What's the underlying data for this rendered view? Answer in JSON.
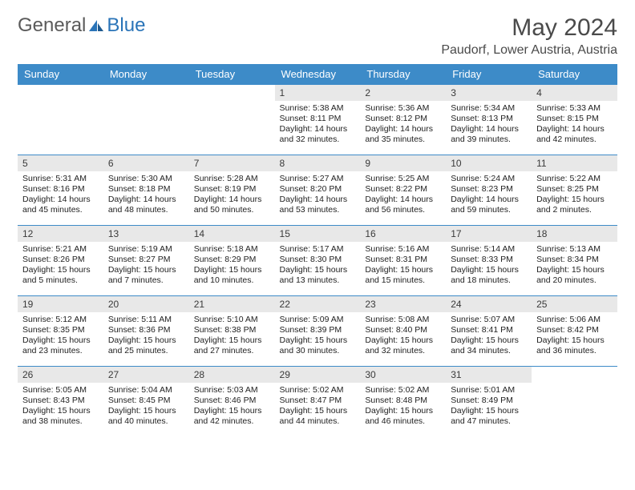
{
  "header": {
    "logo_general": "General",
    "logo_blue": "Blue",
    "month_title": "May 2024",
    "location": "Paudorf, Lower Austria, Austria"
  },
  "colors": {
    "header_bg": "#3d8bc8",
    "header_text": "#ffffff",
    "daynum_bg": "#e8e8e8",
    "border": "#3d8bc8",
    "logo_gray": "#5a5a5a",
    "logo_blue": "#2a74b8"
  },
  "calendar": {
    "day_headers": [
      "Sunday",
      "Monday",
      "Tuesday",
      "Wednesday",
      "Thursday",
      "Friday",
      "Saturday"
    ],
    "weeks": [
      [
        {
          "num": "",
          "sunrise": "",
          "sunset": "",
          "daylight": ""
        },
        {
          "num": "",
          "sunrise": "",
          "sunset": "",
          "daylight": ""
        },
        {
          "num": "",
          "sunrise": "",
          "sunset": "",
          "daylight": ""
        },
        {
          "num": "1",
          "sunrise": "Sunrise: 5:38 AM",
          "sunset": "Sunset: 8:11 PM",
          "daylight": "Daylight: 14 hours and 32 minutes."
        },
        {
          "num": "2",
          "sunrise": "Sunrise: 5:36 AM",
          "sunset": "Sunset: 8:12 PM",
          "daylight": "Daylight: 14 hours and 35 minutes."
        },
        {
          "num": "3",
          "sunrise": "Sunrise: 5:34 AM",
          "sunset": "Sunset: 8:13 PM",
          "daylight": "Daylight: 14 hours and 39 minutes."
        },
        {
          "num": "4",
          "sunrise": "Sunrise: 5:33 AM",
          "sunset": "Sunset: 8:15 PM",
          "daylight": "Daylight: 14 hours and 42 minutes."
        }
      ],
      [
        {
          "num": "5",
          "sunrise": "Sunrise: 5:31 AM",
          "sunset": "Sunset: 8:16 PM",
          "daylight": "Daylight: 14 hours and 45 minutes."
        },
        {
          "num": "6",
          "sunrise": "Sunrise: 5:30 AM",
          "sunset": "Sunset: 8:18 PM",
          "daylight": "Daylight: 14 hours and 48 minutes."
        },
        {
          "num": "7",
          "sunrise": "Sunrise: 5:28 AM",
          "sunset": "Sunset: 8:19 PM",
          "daylight": "Daylight: 14 hours and 50 minutes."
        },
        {
          "num": "8",
          "sunrise": "Sunrise: 5:27 AM",
          "sunset": "Sunset: 8:20 PM",
          "daylight": "Daylight: 14 hours and 53 minutes."
        },
        {
          "num": "9",
          "sunrise": "Sunrise: 5:25 AM",
          "sunset": "Sunset: 8:22 PM",
          "daylight": "Daylight: 14 hours and 56 minutes."
        },
        {
          "num": "10",
          "sunrise": "Sunrise: 5:24 AM",
          "sunset": "Sunset: 8:23 PM",
          "daylight": "Daylight: 14 hours and 59 minutes."
        },
        {
          "num": "11",
          "sunrise": "Sunrise: 5:22 AM",
          "sunset": "Sunset: 8:25 PM",
          "daylight": "Daylight: 15 hours and 2 minutes."
        }
      ],
      [
        {
          "num": "12",
          "sunrise": "Sunrise: 5:21 AM",
          "sunset": "Sunset: 8:26 PM",
          "daylight": "Daylight: 15 hours and 5 minutes."
        },
        {
          "num": "13",
          "sunrise": "Sunrise: 5:19 AM",
          "sunset": "Sunset: 8:27 PM",
          "daylight": "Daylight: 15 hours and 7 minutes."
        },
        {
          "num": "14",
          "sunrise": "Sunrise: 5:18 AM",
          "sunset": "Sunset: 8:29 PM",
          "daylight": "Daylight: 15 hours and 10 minutes."
        },
        {
          "num": "15",
          "sunrise": "Sunrise: 5:17 AM",
          "sunset": "Sunset: 8:30 PM",
          "daylight": "Daylight: 15 hours and 13 minutes."
        },
        {
          "num": "16",
          "sunrise": "Sunrise: 5:16 AM",
          "sunset": "Sunset: 8:31 PM",
          "daylight": "Daylight: 15 hours and 15 minutes."
        },
        {
          "num": "17",
          "sunrise": "Sunrise: 5:14 AM",
          "sunset": "Sunset: 8:33 PM",
          "daylight": "Daylight: 15 hours and 18 minutes."
        },
        {
          "num": "18",
          "sunrise": "Sunrise: 5:13 AM",
          "sunset": "Sunset: 8:34 PM",
          "daylight": "Daylight: 15 hours and 20 minutes."
        }
      ],
      [
        {
          "num": "19",
          "sunrise": "Sunrise: 5:12 AM",
          "sunset": "Sunset: 8:35 PM",
          "daylight": "Daylight: 15 hours and 23 minutes."
        },
        {
          "num": "20",
          "sunrise": "Sunrise: 5:11 AM",
          "sunset": "Sunset: 8:36 PM",
          "daylight": "Daylight: 15 hours and 25 minutes."
        },
        {
          "num": "21",
          "sunrise": "Sunrise: 5:10 AM",
          "sunset": "Sunset: 8:38 PM",
          "daylight": "Daylight: 15 hours and 27 minutes."
        },
        {
          "num": "22",
          "sunrise": "Sunrise: 5:09 AM",
          "sunset": "Sunset: 8:39 PM",
          "daylight": "Daylight: 15 hours and 30 minutes."
        },
        {
          "num": "23",
          "sunrise": "Sunrise: 5:08 AM",
          "sunset": "Sunset: 8:40 PM",
          "daylight": "Daylight: 15 hours and 32 minutes."
        },
        {
          "num": "24",
          "sunrise": "Sunrise: 5:07 AM",
          "sunset": "Sunset: 8:41 PM",
          "daylight": "Daylight: 15 hours and 34 minutes."
        },
        {
          "num": "25",
          "sunrise": "Sunrise: 5:06 AM",
          "sunset": "Sunset: 8:42 PM",
          "daylight": "Daylight: 15 hours and 36 minutes."
        }
      ],
      [
        {
          "num": "26",
          "sunrise": "Sunrise: 5:05 AM",
          "sunset": "Sunset: 8:43 PM",
          "daylight": "Daylight: 15 hours and 38 minutes."
        },
        {
          "num": "27",
          "sunrise": "Sunrise: 5:04 AM",
          "sunset": "Sunset: 8:45 PM",
          "daylight": "Daylight: 15 hours and 40 minutes."
        },
        {
          "num": "28",
          "sunrise": "Sunrise: 5:03 AM",
          "sunset": "Sunset: 8:46 PM",
          "daylight": "Daylight: 15 hours and 42 minutes."
        },
        {
          "num": "29",
          "sunrise": "Sunrise: 5:02 AM",
          "sunset": "Sunset: 8:47 PM",
          "daylight": "Daylight: 15 hours and 44 minutes."
        },
        {
          "num": "30",
          "sunrise": "Sunrise: 5:02 AM",
          "sunset": "Sunset: 8:48 PM",
          "daylight": "Daylight: 15 hours and 46 minutes."
        },
        {
          "num": "31",
          "sunrise": "Sunrise: 5:01 AM",
          "sunset": "Sunset: 8:49 PM",
          "daylight": "Daylight: 15 hours and 47 minutes."
        },
        {
          "num": "",
          "sunrise": "",
          "sunset": "",
          "daylight": ""
        }
      ]
    ]
  }
}
